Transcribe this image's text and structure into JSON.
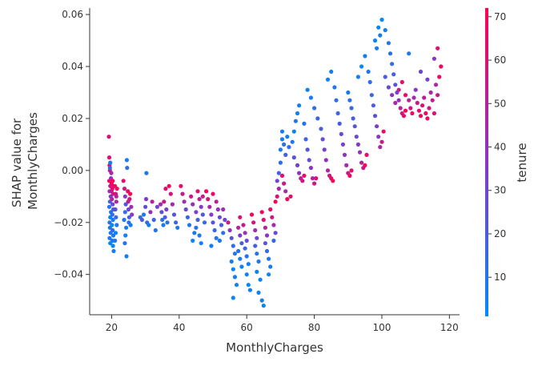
{
  "chart_data": {
    "type": "scatter",
    "title": "",
    "xlabel": "MonthlyCharges",
    "ylabel_lines": [
      "SHAP value for",
      "MonthlyCharges"
    ],
    "xlim": [
      13.5,
      123
    ],
    "ylim": [
      -0.0555,
      0.0625
    ],
    "x_ticks": [
      20,
      40,
      60,
      80,
      100,
      120
    ],
    "y_ticks": [
      -0.04,
      -0.02,
      0.0,
      0.02,
      0.04,
      0.06
    ],
    "x_tick_labels": [
      "20",
      "40",
      "60",
      "80",
      "100",
      "120"
    ],
    "y_tick_labels": [
      "−0.04",
      "−0.02",
      "0.00",
      "0.02",
      "0.04",
      "0.06"
    ],
    "grid": false,
    "colorbar": {
      "label": "tenure",
      "range": [
        1,
        72
      ],
      "ticks": [
        10,
        20,
        30,
        40,
        50,
        60,
        70
      ],
      "tick_labels": [
        "10",
        "20",
        "30",
        "40",
        "50",
        "60",
        "70"
      ],
      "low_color": "#008afb",
      "mid_color": "#8a35c7",
      "high_color": "#ff0052"
    },
    "points": [
      [
        19.2,
        0.013,
        60
      ],
      [
        19.3,
        0.005,
        62
      ],
      [
        19.4,
        0.002,
        65
      ],
      [
        19.5,
        0.0,
        55
      ],
      [
        19.3,
        -0.004,
        68
      ],
      [
        19.6,
        -0.006,
        50
      ],
      [
        19.4,
        -0.008,
        40
      ],
      [
        19.7,
        -0.01,
        30
      ],
      [
        19.5,
        -0.012,
        20
      ],
      [
        19.3,
        -0.014,
        10
      ],
      [
        19.8,
        -0.016,
        8
      ],
      [
        19.6,
        -0.018,
        5
      ],
      [
        19.4,
        -0.02,
        12
      ],
      [
        19.5,
        -0.022,
        9
      ],
      [
        19.7,
        -0.024,
        6
      ],
      [
        19.4,
        -0.026,
        11
      ],
      [
        19.6,
        -0.028,
        3
      ],
      [
        19.8,
        -0.003,
        35
      ],
      [
        19.9,
        -0.001,
        45
      ],
      [
        19.5,
        0.001,
        15
      ],
      [
        19.6,
        0.003,
        4
      ],
      [
        20.0,
        -0.005,
        70
      ],
      [
        20.2,
        -0.007,
        66
      ],
      [
        20.4,
        -0.009,
        58
      ],
      [
        20.1,
        -0.011,
        48
      ],
      [
        20.3,
        -0.013,
        28
      ],
      [
        20.5,
        -0.015,
        18
      ],
      [
        20.2,
        -0.017,
        14
      ],
      [
        20.4,
        -0.019,
        7
      ],
      [
        20.1,
        -0.021,
        2
      ],
      [
        20.3,
        -0.023,
        16
      ],
      [
        20.5,
        -0.025,
        9
      ],
      [
        20.2,
        -0.027,
        5
      ],
      [
        20.4,
        -0.029,
        3
      ],
      [
        20.6,
        -0.031,
        6
      ],
      [
        20.3,
        -0.004,
        72
      ],
      [
        20.5,
        -0.006,
        64
      ],
      [
        20.0,
        -0.008,
        56
      ],
      [
        21.0,
        -0.006,
        69
      ],
      [
        21.2,
        -0.009,
        61
      ],
      [
        21.4,
        -0.012,
        44
      ],
      [
        21.1,
        -0.015,
        24
      ],
      [
        21.3,
        -0.018,
        13
      ],
      [
        21.5,
        -0.021,
        8
      ],
      [
        21.2,
        -0.024,
        4
      ],
      [
        21.0,
        -0.027,
        10
      ],
      [
        21.4,
        -0.01,
        52
      ],
      [
        21.6,
        -0.007,
        67
      ],
      [
        23.5,
        -0.004,
        62
      ],
      [
        23.8,
        -0.007,
        56
      ],
      [
        24.0,
        -0.01,
        38
      ],
      [
        24.2,
        -0.013,
        22
      ],
      [
        24.0,
        -0.016,
        14
      ],
      [
        23.7,
        -0.019,
        9
      ],
      [
        24.3,
        -0.022,
        6
      ],
      [
        24.1,
        -0.025,
        4
      ],
      [
        23.9,
        -0.028,
        11
      ],
      [
        24.4,
        -0.033,
        5
      ],
      [
        24.5,
        0.004,
        8
      ],
      [
        24.6,
        0.001,
        13
      ],
      [
        24.8,
        -0.008,
        66
      ],
      [
        24.9,
        -0.012,
        49
      ],
      [
        25.0,
        -0.015,
        29
      ],
      [
        25.2,
        -0.018,
        18
      ],
      [
        25.1,
        -0.02,
        12
      ],
      [
        25.3,
        -0.011,
        58
      ],
      [
        25.5,
        -0.009,
        70
      ],
      [
        25.6,
        -0.021,
        7
      ],
      [
        25.8,
        -0.014,
        43
      ],
      [
        26.0,
        -0.017,
        35
      ],
      [
        28.5,
        -0.018,
        12
      ],
      [
        29.0,
        -0.019,
        20
      ],
      [
        29.5,
        -0.017,
        8
      ],
      [
        30.0,
        -0.014,
        25
      ],
      [
        30.2,
        -0.011,
        34
      ],
      [
        30.5,
        -0.02,
        15
      ],
      [
        30.3,
        -0.001,
        9
      ],
      [
        31.0,
        -0.021,
        6
      ],
      [
        31.5,
        -0.016,
        40
      ],
      [
        32.0,
        -0.012,
        50
      ],
      [
        32.5,
        -0.019,
        18
      ],
      [
        33.0,
        -0.023,
        10
      ],
      [
        33.5,
        -0.014,
        30
      ],
      [
        34.5,
        -0.013,
        44
      ],
      [
        34.8,
        -0.016,
        26
      ],
      [
        35.0,
        -0.019,
        14
      ],
      [
        35.3,
        -0.021,
        8
      ],
      [
        35.5,
        -0.012,
        55
      ],
      [
        35.8,
        -0.018,
        19
      ],
      [
        36.0,
        -0.007,
        62
      ],
      [
        36.2,
        -0.015,
        33
      ],
      [
        36.5,
        -0.02,
        11
      ],
      [
        37.0,
        -0.006,
        70
      ],
      [
        37.5,
        -0.009,
        60
      ],
      [
        38.0,
        -0.013,
        46
      ],
      [
        38.5,
        -0.017,
        24
      ],
      [
        39.0,
        -0.02,
        15
      ],
      [
        39.5,
        -0.022,
        9
      ],
      [
        40.5,
        -0.006,
        66
      ],
      [
        41.0,
        -0.009,
        54
      ],
      [
        41.5,
        -0.012,
        42
      ],
      [
        42.0,
        -0.015,
        28
      ],
      [
        42.5,
        -0.018,
        16
      ],
      [
        43.0,
        -0.021,
        10
      ],
      [
        43.5,
        -0.01,
        58
      ],
      [
        44.0,
        -0.013,
        40
      ],
      [
        44.5,
        -0.024,
        7
      ],
      [
        44.0,
        -0.027,
        4
      ],
      [
        45.0,
        -0.016,
        32
      ],
      [
        45.5,
        -0.019,
        20
      ],
      [
        45.0,
        -0.022,
        12
      ],
      [
        45.5,
        -0.008,
        64
      ],
      [
        46.0,
        -0.011,
        50
      ],
      [
        46.5,
        -0.014,
        36
      ],
      [
        46.0,
        -0.025,
        8
      ],
      [
        46.5,
        -0.028,
        5
      ],
      [
        47.0,
        -0.017,
        22
      ],
      [
        47.5,
        -0.02,
        14
      ],
      [
        47.0,
        -0.01,
        56
      ],
      [
        48.0,
        -0.008,
        70
      ],
      [
        48.5,
        -0.011,
        60
      ],
      [
        49.0,
        -0.014,
        46
      ],
      [
        49.5,
        -0.017,
        34
      ],
      [
        50.0,
        -0.02,
        24
      ],
      [
        50.5,
        -0.023,
        16
      ],
      [
        51.0,
        -0.026,
        10
      ],
      [
        49.5,
        -0.029,
        6
      ],
      [
        50.0,
        -0.009,
        66
      ],
      [
        51.0,
        -0.012,
        52
      ],
      [
        51.5,
        -0.015,
        40
      ],
      [
        52.0,
        -0.018,
        28
      ],
      [
        52.5,
        -0.021,
        18
      ],
      [
        53.0,
        -0.024,
        12
      ],
      [
        52.0,
        -0.027,
        8
      ],
      [
        53.5,
        -0.019,
        30
      ],
      [
        53.0,
        -0.015,
        44
      ],
      [
        54.5,
        -0.02,
        56
      ],
      [
        55.0,
        -0.023,
        38
      ],
      [
        55.5,
        -0.026,
        24
      ],
      [
        56.0,
        -0.029,
        14
      ],
      [
        56.5,
        -0.032,
        10
      ],
      [
        55.5,
        -0.035,
        6
      ],
      [
        56.0,
        -0.038,
        4
      ],
      [
        56.5,
        -0.041,
        8
      ],
      [
        57.0,
        -0.044,
        5
      ],
      [
        56.0,
        -0.049,
        3
      ],
      [
        57.5,
        -0.022,
        48
      ],
      [
        58.0,
        -0.025,
        34
      ],
      [
        58.5,
        -0.028,
        20
      ],
      [
        57.5,
        -0.031,
        12
      ],
      [
        58.0,
        -0.034,
        7
      ],
      [
        58.5,
        -0.037,
        5
      ],
      [
        58.0,
        -0.018,
        62
      ],
      [
        59.0,
        -0.021,
        54
      ],
      [
        59.5,
        -0.024,
        40
      ],
      [
        60.0,
        -0.027,
        26
      ],
      [
        59.5,
        -0.03,
        16
      ],
      [
        60.0,
        -0.033,
        10
      ],
      [
        60.5,
        -0.036,
        6
      ],
      [
        60.0,
        -0.04,
        4
      ],
      [
        60.5,
        -0.044,
        3
      ],
      [
        61.0,
        -0.046,
        5
      ],
      [
        61.5,
        -0.017,
        68
      ],
      [
        62.0,
        -0.02,
        58
      ],
      [
        62.5,
        -0.023,
        44
      ],
      [
        63.0,
        -0.026,
        30
      ],
      [
        62.5,
        -0.029,
        18
      ],
      [
        63.0,
        -0.032,
        11
      ],
      [
        63.5,
        -0.035,
        7
      ],
      [
        63.0,
        -0.039,
        5
      ],
      [
        64.0,
        -0.042,
        4
      ],
      [
        63.5,
        -0.047,
        3
      ],
      [
        64.5,
        -0.05,
        6
      ],
      [
        65.0,
        -0.052,
        4
      ],
      [
        64.5,
        -0.016,
        70
      ],
      [
        65.0,
        -0.019,
        62
      ],
      [
        65.5,
        -0.022,
        50
      ],
      [
        66.0,
        -0.025,
        38
      ],
      [
        65.5,
        -0.028,
        24
      ],
      [
        66.0,
        -0.031,
        14
      ],
      [
        66.5,
        -0.034,
        9
      ],
      [
        67.0,
        -0.037,
        6
      ],
      [
        66.5,
        -0.04,
        4
      ],
      [
        67.0,
        -0.015,
        66
      ],
      [
        67.5,
        -0.018,
        56
      ],
      [
        68.0,
        -0.021,
        42
      ],
      [
        68.5,
        -0.024,
        28
      ],
      [
        68.0,
        -0.027,
        16
      ],
      [
        68.5,
        -0.012,
        70
      ],
      [
        69.0,
        -0.01,
        60
      ],
      [
        69.5,
        -0.007,
        46
      ],
      [
        69.0,
        -0.004,
        30
      ],
      [
        69.5,
        -0.001,
        20
      ],
      [
        70.0,
        0.003,
        12
      ],
      [
        70.0,
        0.008,
        8
      ],
      [
        70.5,
        0.012,
        5
      ],
      [
        70.5,
        -0.002,
        62
      ],
      [
        71.0,
        -0.005,
        54
      ],
      [
        71.5,
        -0.008,
        44
      ],
      [
        70.5,
        0.015,
        6
      ],
      [
        71.0,
        0.01,
        10
      ],
      [
        71.5,
        0.006,
        18
      ],
      [
        72.0,
        0.013,
        7
      ],
      [
        72.5,
        0.009,
        14
      ],
      [
        72.0,
        -0.011,
        70
      ],
      [
        73.0,
        -0.01,
        62
      ],
      [
        73.5,
        0.011,
        9
      ],
      [
        74.0,
        0.015,
        5
      ],
      [
        74.5,
        0.019,
        8
      ],
      [
        75.0,
        0.022,
        4
      ],
      [
        75.5,
        0.025,
        6
      ],
      [
        74.0,
        0.005,
        24
      ],
      [
        75.0,
        0.002,
        32
      ],
      [
        75.5,
        -0.001,
        40
      ],
      [
        76.0,
        -0.003,
        52
      ],
      [
        76.5,
        -0.004,
        60
      ],
      [
        77.0,
        -0.002,
        66
      ],
      [
        77.0,
        0.018,
        11
      ],
      [
        77.5,
        0.012,
        16
      ],
      [
        78.0,
        0.008,
        22
      ],
      [
        78.5,
        0.004,
        28
      ],
      [
        79.0,
        0.001,
        36
      ],
      [
        79.5,
        -0.003,
        46
      ],
      [
        80.0,
        -0.005,
        56
      ],
      [
        80.5,
        -0.003,
        64
      ],
      [
        78.0,
        0.031,
        5
      ],
      [
        79.0,
        0.028,
        8
      ],
      [
        80.0,
        0.024,
        12
      ],
      [
        81.0,
        0.02,
        16
      ],
      [
        82.0,
        0.016,
        20
      ],
      [
        82.5,
        0.012,
        26
      ],
      [
        83.0,
        0.008,
        32
      ],
      [
        83.5,
        0.004,
        40
      ],
      [
        84.0,
        0.0,
        48
      ],
      [
        84.5,
        -0.002,
        56
      ],
      [
        85.0,
        -0.003,
        64
      ],
      [
        85.5,
        -0.004,
        70
      ],
      [
        84.0,
        0.035,
        4
      ],
      [
        85.0,
        0.038,
        6
      ],
      [
        86.0,
        0.032,
        9
      ],
      [
        86.5,
        0.027,
        13
      ],
      [
        87.0,
        0.022,
        17
      ],
      [
        87.5,
        0.018,
        21
      ],
      [
        88.0,
        0.014,
        26
      ],
      [
        88.5,
        0.01,
        32
      ],
      [
        89.0,
        0.006,
        38
      ],
      [
        89.5,
        0.002,
        46
      ],
      [
        90.0,
        -0.001,
        56
      ],
      [
        90.5,
        -0.002,
        66
      ],
      [
        91.0,
        0.0,
        62
      ],
      [
        90.0,
        0.03,
        7
      ],
      [
        90.5,
        0.027,
        11
      ],
      [
        91.0,
        0.024,
        15
      ],
      [
        91.5,
        0.02,
        19
      ],
      [
        92.0,
        0.017,
        23
      ],
      [
        92.5,
        0.013,
        28
      ],
      [
        93.0,
        0.01,
        34
      ],
      [
        93.5,
        0.007,
        40
      ],
      [
        94.0,
        0.003,
        48
      ],
      [
        94.5,
        0.001,
        58
      ],
      [
        95.0,
        0.002,
        68
      ],
      [
        95.5,
        0.006,
        64
      ],
      [
        93.0,
        0.036,
        5
      ],
      [
        94.0,
        0.04,
        3
      ],
      [
        95.0,
        0.044,
        6
      ],
      [
        96.0,
        0.038,
        9
      ],
      [
        96.5,
        0.034,
        12
      ],
      [
        97.0,
        0.029,
        16
      ],
      [
        97.5,
        0.025,
        20
      ],
      [
        98.0,
        0.021,
        26
      ],
      [
        98.5,
        0.017,
        32
      ],
      [
        99.0,
        0.013,
        38
      ],
      [
        99.5,
        0.009,
        46
      ],
      [
        100.0,
        0.011,
        56
      ],
      [
        100.5,
        0.015,
        64
      ],
      [
        98.0,
        0.05,
        4
      ],
      [
        98.5,
        0.047,
        7
      ],
      [
        99.0,
        0.055,
        3
      ],
      [
        99.5,
        0.052,
        6
      ],
      [
        100.0,
        0.058,
        2
      ],
      [
        101.0,
        0.054,
        5
      ],
      [
        102.0,
        0.049,
        8
      ],
      [
        102.5,
        0.045,
        11
      ],
      [
        103.0,
        0.041,
        14
      ],
      [
        103.5,
        0.037,
        18
      ],
      [
        104.0,
        0.033,
        24
      ],
      [
        104.5,
        0.03,
        32
      ],
      [
        105.0,
        0.027,
        40
      ],
      [
        105.5,
        0.024,
        48
      ],
      [
        106.0,
        0.022,
        56
      ],
      [
        106.5,
        0.021,
        64
      ],
      [
        107.0,
        0.023,
        70
      ],
      [
        101.0,
        0.036,
        20
      ],
      [
        102.0,
        0.032,
        28
      ],
      [
        103.0,
        0.029,
        36
      ],
      [
        104.0,
        0.026,
        44
      ],
      [
        105.0,
        0.031,
        54
      ],
      [
        106.0,
        0.034,
        62
      ],
      [
        107.0,
        0.029,
        68
      ],
      [
        108.0,
        0.045,
        9
      ],
      [
        108.0,
        0.027,
        50
      ],
      [
        108.5,
        0.024,
        58
      ],
      [
        109.0,
        0.022,
        66
      ],
      [
        109.5,
        0.028,
        44
      ],
      [
        110.0,
        0.031,
        36
      ],
      [
        110.5,
        0.026,
        56
      ],
      [
        111.0,
        0.023,
        64
      ],
      [
        111.5,
        0.021,
        70
      ],
      [
        112.0,
        0.025,
        60
      ],
      [
        112.5,
        0.028,
        52
      ],
      [
        113.0,
        0.022,
        68
      ],
      [
        113.5,
        0.02,
        66
      ],
      [
        114.0,
        0.024,
        58
      ],
      [
        114.5,
        0.03,
        46
      ],
      [
        115.0,
        0.027,
        54
      ],
      [
        115.5,
        0.022,
        62
      ],
      [
        116.0,
        0.033,
        48
      ],
      [
        116.5,
        0.029,
        56
      ],
      [
        117.0,
        0.036,
        64
      ],
      [
        117.5,
        0.04,
        68
      ],
      [
        116.5,
        0.047,
        62
      ],
      [
        115.5,
        0.043,
        38
      ],
      [
        113.5,
        0.035,
        30
      ],
      [
        111.5,
        0.038,
        28
      ]
    ]
  }
}
